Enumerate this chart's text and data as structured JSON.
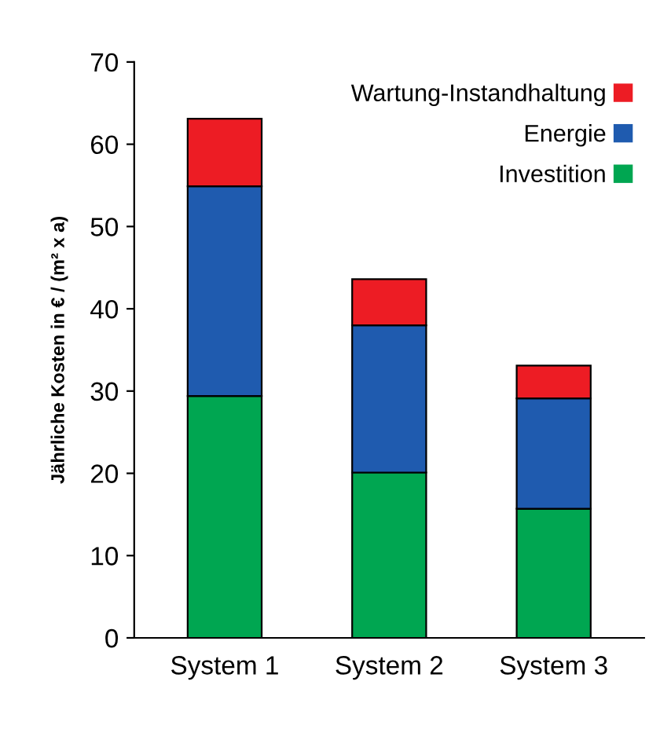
{
  "chart_data": {
    "type": "bar",
    "stacked": true,
    "ylabel": "Jährliche Kosten in € / (m² x a)",
    "categories": [
      "System 1",
      "System 2",
      "System 3"
    ],
    "series": [
      {
        "name": "Investition",
        "color": "#00a651",
        "values": [
          29.4,
          20.1,
          15.7
        ]
      },
      {
        "name": "Energie",
        "color": "#1f5baf",
        "values": [
          25.5,
          17.9,
          13.4
        ]
      },
      {
        "name": "Wartung-Instandhaltung",
        "color": "#ed1c24",
        "values": [
          8.2,
          5.6,
          4.0
        ]
      }
    ],
    "ylim": [
      0,
      70
    ],
    "yticks": [
      0,
      10,
      20,
      30,
      40,
      50,
      60,
      70
    ],
    "grid": false,
    "legend": "top right"
  }
}
